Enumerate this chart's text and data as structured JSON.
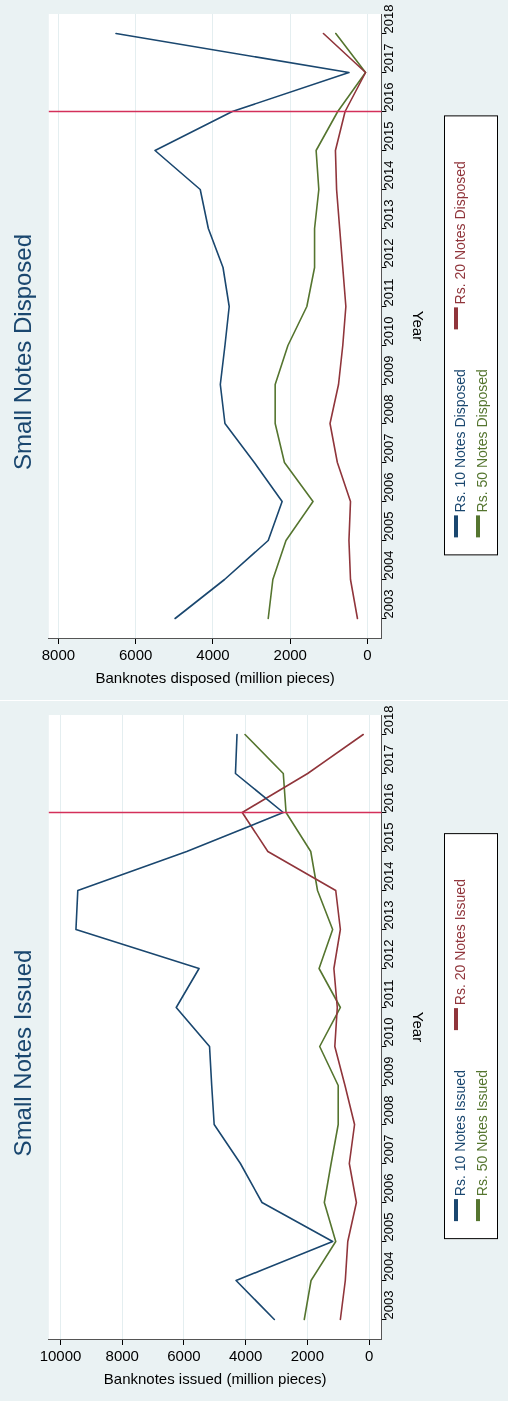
{
  "chart_data": [
    {
      "type": "line",
      "orientation": "horizontal",
      "title": "Small Notes Disposed",
      "xlabel": "Banknotes disposed (million pieces)",
      "ylabel": "Year",
      "categories": [
        "2018",
        "2017",
        "2016",
        "2015",
        "2014",
        "2013",
        "2012",
        "2011",
        "2010",
        "2009",
        "2008",
        "2007",
        "2006",
        "2005",
        "2004",
        "2003"
      ],
      "series": [
        {
          "name": "Rs. 10 Notes Disposed",
          "color": "#1a476f",
          "values": [
            6510,
            480,
            3500,
            5500,
            4330,
            4120,
            3740,
            3580,
            3690,
            3810,
            3690,
            2930,
            2210,
            2570,
            3700,
            4980
          ]
        },
        {
          "name": "Rs. 20 Notes Disposed",
          "color": "#90353b",
          "values": [
            1140,
            50,
            580,
            830,
            800,
            720,
            640,
            560,
            640,
            750,
            970,
            780,
            440,
            480,
            440,
            260
          ]
        },
        {
          "name": "Rs. 50 Notes Disposed",
          "color": "#55752f",
          "values": [
            820,
            50,
            770,
            1330,
            1260,
            1370,
            1370,
            1570,
            2060,
            2390,
            2390,
            2150,
            1410,
            2110,
            2450,
            2570
          ]
        }
      ],
      "xlim": [
        8250,
        -360
      ],
      "xticks": [
        8000,
        6000,
        4000,
        2000,
        0
      ],
      "ref_lines": [
        {
          "axis": "y",
          "value": "2016",
          "color": "#d4305a"
        }
      ],
      "grid": "x",
      "legend": "right",
      "marker": "none",
      "line_style": "solid"
    },
    {
      "type": "line",
      "orientation": "horizontal",
      "title": "Small Notes Issued",
      "xlabel": "Banknotes issued (million pieces)",
      "ylabel": "Year",
      "categories": [
        "2018",
        "2017",
        "2016",
        "2015",
        "2014",
        "2013",
        "2012",
        "2011",
        "2010",
        "2009",
        "2008",
        "2007",
        "2006",
        "2005",
        "2004",
        "2003"
      ],
      "series": [
        {
          "name": "Rs. 10 Notes Issued",
          "color": "#1a476f",
          "values": [
            4280,
            4330,
            2780,
            5910,
            9440,
            9500,
            5510,
            6250,
            5170,
            5100,
            5020,
            4170,
            3470,
            1180,
            4310,
            3070
          ]
        },
        {
          "name": "Rs. 20 Notes Issued",
          "color": "#90353b",
          "values": [
            190,
            1990,
            4110,
            3280,
            1080,
            930,
            1140,
            1030,
            1110,
            780,
            470,
            640,
            410,
            690,
            770,
            930
          ]
        },
        {
          "name": "Rs. 50 Notes Issued",
          "color": "#55752f",
          "values": [
            4020,
            2780,
            2690,
            1890,
            1670,
            1180,
            1620,
            930,
            1600,
            1000,
            1000,
            1230,
            1450,
            1080,
            1880,
            2100
          ]
        }
      ],
      "xlim": [
        10380,
        -400
      ],
      "xticks": [
        10000,
        8000,
        6000,
        4000,
        2000,
        0
      ],
      "ref_lines": [
        {
          "axis": "y",
          "value": "2016",
          "color": "#d4305a"
        }
      ],
      "grid": "x",
      "legend": "right",
      "marker": "none",
      "line_style": "solid"
    }
  ]
}
